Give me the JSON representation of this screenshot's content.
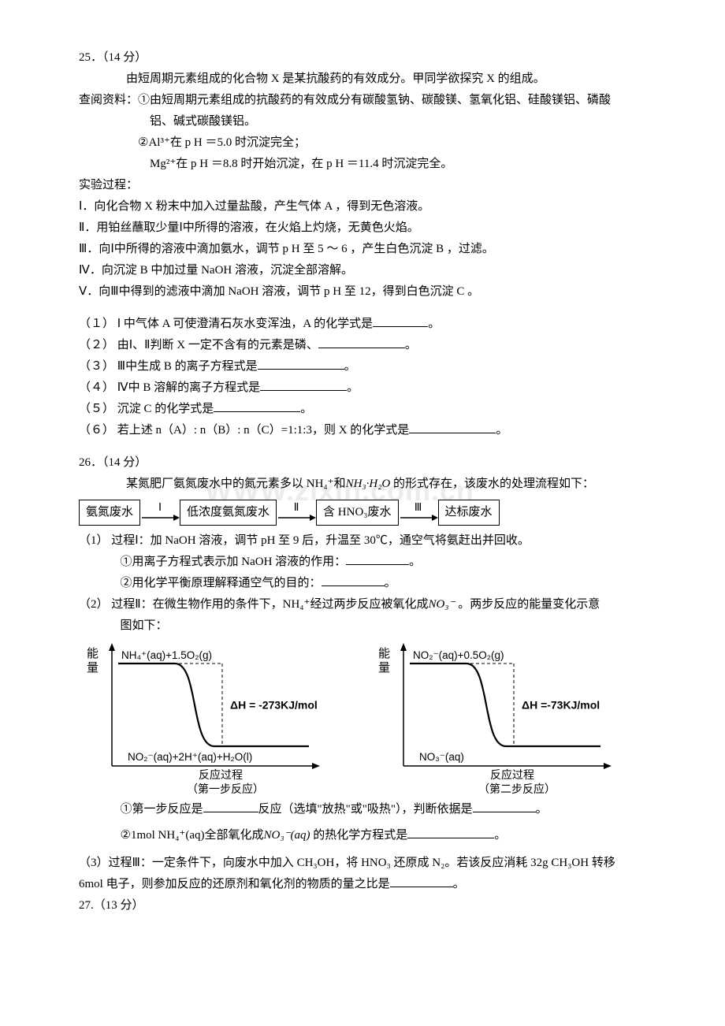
{
  "q25": {
    "head": "25．（14 分）",
    "intro": "由短周期元素组成的化合物 X 是某抗酸药的有效成分。甲同学欲探究 X 的组成。",
    "ref_label": "查阅资料：",
    "ref1": "①由短周期元素组成的抗酸药的有效成分有碳酸氢钠、碳酸镁、氢氧化铝、硅酸镁铝、磷酸",
    "ref1b": "铝、碱式碳酸镁铝。",
    "ref2": "②Al³⁺在 p H ＝5.0 时沉淀完全；",
    "ref3": "Mg²⁺在 p H ＝8.8 时开始沉淀，在 p H ＝11.4 时沉淀完全。",
    "proc_label": "实验过程：",
    "s1": "Ⅰ．向化合物 X 粉末中加入过量盐酸，产生气体 A ，得到无色溶液。",
    "s2": "Ⅱ．用铂丝蘸取少量Ⅰ中所得的溶液，在火焰上灼烧，无黄色火焰。",
    "s3": "Ⅲ．向Ⅰ中所得的溶液中滴加氨水，调节 p H 至 5 ～ 6 ，产生白色沉淀 B ，过滤。",
    "s4": "Ⅳ．向沉淀 B 中加过量 NaOH 溶液，沉淀全部溶解。",
    "s5": "Ⅴ．向Ⅲ中得到的滤液中滴加 NaOH 溶液，调节 p H 至 12，得到白色沉淀 C 。",
    "p1a": "（１）  Ⅰ 中气体 A 可使澄清石灰水变浑浊，A 的化学式是",
    "p1b": "。",
    "p2a": "（２）  由Ⅰ、Ⅱ判断 X 一定不含有的元素是磷、",
    "p2b": "。",
    "p3a": "（３）  Ⅲ中生成 B 的离子方程式是",
    "p3b": "。",
    "p4a": "（４）  Ⅳ中 B 溶解的离子方程式是",
    "p4b": "。",
    "p5a": "（５）  沉淀 C 的化学式是",
    "p5b": "。",
    "p6a": "（６）  若上述 n（A）: n（B）: n（C）=1:1:3，则 X 的化学式是",
    "p6b": "。"
  },
  "q26": {
    "head": "26．（14 分）",
    "intro_a": "某氮肥厂氨氮废水中的氮元素多以 NH₄⁺和",
    "intro_formula": "NH₃·H₂O",
    "intro_b": " 的形式存在，该废水的处理流程如下：",
    "flow": {
      "b1": "氨氮废水",
      "a1": "Ⅰ",
      "b2": "低浓度氨氮废水",
      "a2": "Ⅱ",
      "b3": "含 HNO₃废水",
      "a3": "Ⅲ",
      "b4": "达标废水"
    },
    "p1_head": "（1）   过程Ⅰ：加 NaOH 溶液，调节 pH 至 9 后，升温至 30℃，通空气将氨赶出并回收。",
    "p1_1a": "①用离子方程式表示加 NaOH 溶液的作用：",
    "p1_1b": "。",
    "p1_2a": "②用化学平衡原理解释通空气的目的：",
    "p1_2b": "。",
    "p2_head_a": "（2）   过程Ⅱ：在微生物作用的条件下，NH₄⁺经过两步反应被氧化成",
    "p2_head_formula": "NO₃⁻",
    "p2_head_b": " 。两步反应的能量变化示意",
    "p2_head_c": "图如下：",
    "chart1": {
      "ylabel_top": "能",
      "ylabel_bot": "量",
      "top_species": "NH₄⁺(aq)+1.5O₂(g)",
      "dh": "ΔH = -273KJ/mol",
      "bottom_species": "NO₂⁻(aq)+2H⁺(aq)+H₂O(l)",
      "xlabel": "反应过程",
      "caption": "（第一步反应）",
      "line_color": "#000000"
    },
    "chart2": {
      "ylabel_top": "能",
      "ylabel_bot": "量",
      "top_species": "NO₂⁻(aq)+0.5O₂(g)",
      "dh": "ΔH =-73KJ/mol",
      "bottom_species": "NO₃⁻(aq)",
      "xlabel": "反应过程",
      "caption": "（第二步反应）",
      "line_color": "#000000"
    },
    "p2_1a": "①第一步反应是",
    "p2_1b": "反应（选填\"放热\"或\"吸热\"），判断依据是",
    "p2_1c": "。",
    "p2_2a": "②1mol NH₄⁺(aq)全部氧化成",
    "p2_2f": "NO₃⁻(aq)",
    "p2_2b": " 的热化学方程式是",
    "p2_2c": "。",
    "p3_a": "（3）过程Ⅲ：一定条件下，向废水中加入 CH₃OH，将 HNO₃ 还原成 N₂。若该反应消耗 32g CH₃OH 转移",
    "p3_b": "6mol 电子，则参加反应的还原剂和氧化剂的物质的量之比是",
    "p3_c": "。"
  },
  "q27_head": "27.（13 分）"
}
